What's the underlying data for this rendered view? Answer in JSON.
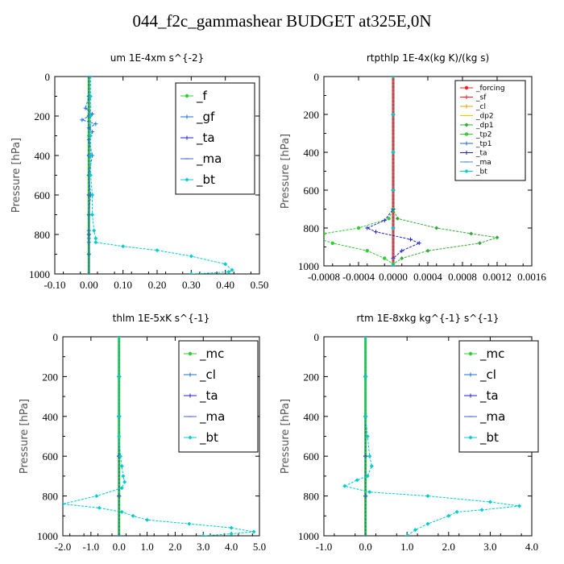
{
  "title": "044_f2c_gammashear  BUDGET at325E,0N",
  "chart_data": [
    {
      "type": "line",
      "title": "um   1E-4xm s^{-2}",
      "ylabel": "Pressure [hPa]",
      "xlim": [
        -0.1,
        0.5
      ],
      "ylim": [
        1000,
        0
      ],
      "xticks": [
        "-0.10",
        "0.00",
        "0.10",
        "0.20",
        "0.30",
        "0.40",
        "0.50"
      ],
      "yticks": [
        "0",
        "200",
        "400",
        "600",
        "800",
        "1000"
      ],
      "legend_position": "top-right",
      "series": [
        {
          "name": "_f",
          "color": "#33cc33",
          "x": [
            0,
            0,
            0,
            0,
            0,
            0,
            0,
            0,
            0,
            0,
            0
          ],
          "y": [
            0,
            100,
            200,
            300,
            400,
            500,
            600,
            700,
            800,
            900,
            1000
          ]
        },
        {
          "name": "_gf",
          "color": "#1a6ee6",
          "x": [
            0,
            0,
            -0.01,
            0.01,
            -0.02,
            0.02,
            0,
            0.01,
            0,
            0.01,
            0,
            0.005,
            0,
            0,
            0,
            0,
            0,
            0
          ],
          "y": [
            0,
            100,
            160,
            190,
            220,
            240,
            260,
            280,
            320,
            400,
            500,
            600,
            700,
            780,
            820,
            840,
            900,
            1000
          ]
        },
        {
          "name": "_ta",
          "color": "#2222cc",
          "x": [
            0,
            0,
            0,
            0,
            0,
            0
          ],
          "y": [
            0,
            200,
            400,
            600,
            800,
            1000
          ]
        },
        {
          "name": "_ma",
          "color": "#4466cc",
          "x": [
            0,
            0,
            0,
            0,
            0,
            0
          ],
          "y": [
            0,
            200,
            400,
            600,
            800,
            1000
          ]
        },
        {
          "name": "_bt",
          "color": "#00cccc",
          "x": [
            0.005,
            0.005,
            0.005,
            0.005,
            0.005,
            0.005,
            0.01,
            0.01,
            0.015,
            0.02,
            0.02,
            0.1,
            0.2,
            0.3,
            0.4,
            0.42,
            0.41,
            0.3
          ],
          "y": [
            0,
            100,
            200,
            300,
            400,
            500,
            600,
            700,
            780,
            820,
            840,
            860,
            880,
            910,
            950,
            980,
            990,
            1000
          ]
        }
      ]
    },
    {
      "type": "line",
      "title": "rtpthlp   1E-4x(kg K)/(kg s)",
      "ylabel": "Pressure [hPa]",
      "xlim": [
        -0.0008,
        0.0016
      ],
      "ylim": [
        1000,
        0
      ],
      "xticks": [
        "-0.0008",
        "-0.0004",
        "0.0000",
        "0.0004",
        "0.0008",
        "0.0012",
        "0.0016"
      ],
      "yticks": [
        "0",
        "200",
        "400",
        "600",
        "800",
        "1000"
      ],
      "legend_position": "top-right",
      "series": [
        {
          "name": "_forcing",
          "color": "#ee2222",
          "x": [
            0,
            0,
            0,
            0,
            0,
            0
          ],
          "y": [
            0,
            200,
            400,
            600,
            800,
            1000
          ]
        },
        {
          "name": "_sf",
          "color": "#ee2222",
          "x": [
            0,
            0,
            0,
            0,
            0,
            0
          ],
          "y": [
            0,
            200,
            400,
            600,
            800,
            1000
          ]
        },
        {
          "name": "_cl",
          "color": "#ff9900",
          "x": [
            0,
            0,
            0,
            0,
            0,
            0
          ],
          "y": [
            0,
            200,
            400,
            600,
            800,
            1000
          ]
        },
        {
          "name": "_dp2",
          "color": "#ddcc00",
          "x": [
            0,
            0,
            0,
            0,
            0,
            0
          ],
          "y": [
            0,
            200,
            400,
            600,
            800,
            1000
          ]
        },
        {
          "name": "_dp1",
          "color": "#33aa33",
          "x": [
            0,
            0,
            0,
            5e-05,
            0.0005,
            0.0009,
            0.0012,
            0.001,
            0.0004,
            0.0001,
            0,
            0
          ],
          "y": [
            0,
            400,
            700,
            750,
            800,
            830,
            850,
            880,
            920,
            960,
            990,
            1000
          ]
        },
        {
          "name": "_tp2",
          "color": "#33cc33",
          "x": [
            0,
            0,
            0,
            -5e-05,
            -0.0004,
            -0.0008,
            -0.0009,
            -0.0007,
            -0.0003,
            -0.0001,
            0,
            0
          ],
          "y": [
            0,
            400,
            700,
            750,
            800,
            830,
            850,
            880,
            920,
            960,
            990,
            1000
          ]
        },
        {
          "name": "_tp1",
          "color": "#2266cc",
          "x": [
            0,
            0,
            0,
            0,
            0,
            0
          ],
          "y": [
            0,
            200,
            400,
            600,
            800,
            1000
          ]
        },
        {
          "name": "_ta",
          "color": "#2222cc",
          "x": [
            0,
            0,
            0,
            -0.0001,
            -0.0003,
            -0.0002,
            0.0002,
            0.0003,
            0.0001,
            0,
            0
          ],
          "y": [
            0,
            400,
            700,
            760,
            800,
            820,
            860,
            880,
            920,
            960,
            1000
          ]
        },
        {
          "name": "_ma",
          "color": "#4488cc",
          "x": [
            0,
            0,
            0,
            0,
            0,
            0
          ],
          "y": [
            0,
            200,
            400,
            600,
            800,
            1000
          ]
        },
        {
          "name": "_bt",
          "color": "#00cccc",
          "x": [
            0,
            0,
            0,
            0,
            0,
            0
          ],
          "y": [
            0,
            200,
            400,
            600,
            800,
            1000
          ]
        }
      ]
    },
    {
      "type": "line",
      "title": "thlm   1E-5xK s^{-1}",
      "ylabel": "Pressure [hPa]",
      "xlim": [
        -2.0,
        5.0
      ],
      "ylim": [
        1000,
        0
      ],
      "xticks": [
        "-2.0",
        "-1.0",
        "0.0",
        "1.0",
        "2.0",
        "3.0",
        "4.0",
        "5.0"
      ],
      "yticks": [
        "0",
        "200",
        "400",
        "600",
        "800",
        "1000"
      ],
      "legend_position": "top-right",
      "series": [
        {
          "name": "_mc",
          "color": "#33cc33",
          "x": [
            0,
            0,
            0,
            0,
            0,
            0
          ],
          "y": [
            0,
            200,
            400,
            600,
            800,
            1000
          ]
        },
        {
          "name": "_cl",
          "color": "#1a6ee6",
          "x": [
            0,
            0,
            0,
            0,
            0,
            0
          ],
          "y": [
            0,
            200,
            400,
            600,
            800,
            1000
          ]
        },
        {
          "name": "_ta",
          "color": "#2222cc",
          "x": [
            0,
            0,
            0,
            0,
            0,
            0
          ],
          "y": [
            0,
            200,
            400,
            600,
            800,
            1000
          ]
        },
        {
          "name": "_ma",
          "color": "#4466cc",
          "x": [
            0,
            0,
            0,
            0,
            0,
            0
          ],
          "y": [
            0,
            200,
            400,
            600,
            800,
            1000
          ]
        },
        {
          "name": "_bt",
          "color": "#00cccc",
          "x": [
            0,
            0,
            0,
            0,
            0.05,
            0.1,
            0.15,
            0.2,
            0.1,
            -0.8,
            -2.0,
            -0.7,
            0.1,
            0.5,
            1.0,
            2.5,
            4.0,
            4.8,
            4.0,
            3.0
          ],
          "y": [
            0,
            200,
            400,
            500,
            600,
            650,
            700,
            730,
            760,
            800,
            840,
            860,
            880,
            900,
            920,
            940,
            960,
            980,
            990,
            1000
          ]
        }
      ]
    },
    {
      "type": "line",
      "title": "rtm   1E-8xkg kg^{-1} s^{-1}",
      "ylabel": "Pressure [hPa]",
      "xlim": [
        -1.0,
        4.0
      ],
      "ylim": [
        1000,
        0
      ],
      "xticks": [
        "-1.0",
        "0.0",
        "1.0",
        "2.0",
        "3.0",
        "4.0"
      ],
      "yticks": [
        "0",
        "200",
        "400",
        "600",
        "800",
        "1000"
      ],
      "legend_position": "top-right",
      "series": [
        {
          "name": "_mc",
          "color": "#33cc33",
          "x": [
            0,
            0,
            0,
            0,
            0,
            0
          ],
          "y": [
            0,
            200,
            400,
            600,
            800,
            1000
          ]
        },
        {
          "name": "_cl",
          "color": "#1a6ee6",
          "x": [
            0,
            0,
            0,
            0,
            0,
            0
          ],
          "y": [
            0,
            200,
            400,
            600,
            800,
            1000
          ]
        },
        {
          "name": "_ta",
          "color": "#2222cc",
          "x": [
            0,
            0,
            0,
            0,
            0,
            0
          ],
          "y": [
            0,
            200,
            400,
            600,
            800,
            1000
          ]
        },
        {
          "name": "_ma",
          "color": "#4466cc",
          "x": [
            0,
            0,
            0,
            0,
            0,
            0
          ],
          "y": [
            0,
            200,
            400,
            600,
            800,
            1000
          ]
        },
        {
          "name": "_bt",
          "color": "#00cccc",
          "x": [
            0,
            0,
            0,
            0.05,
            0.1,
            0.15,
            0.05,
            -0.2,
            -0.5,
            0.1,
            1.5,
            3.0,
            3.7,
            2.8,
            2.2,
            2.0,
            1.5,
            1.2,
            1.0
          ],
          "y": [
            0,
            200,
            400,
            500,
            600,
            650,
            700,
            720,
            750,
            780,
            800,
            830,
            850,
            870,
            880,
            900,
            940,
            970,
            1000
          ]
        }
      ]
    }
  ]
}
